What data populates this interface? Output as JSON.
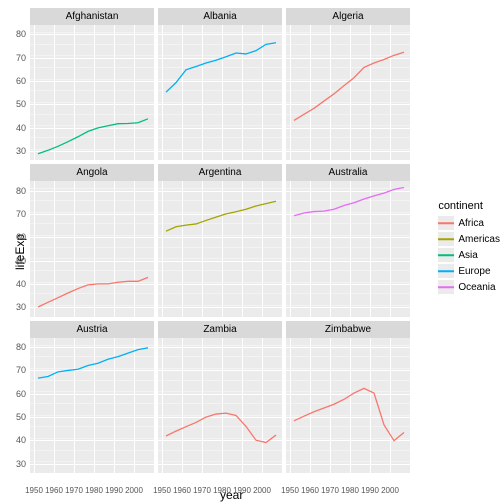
{
  "axis_titles": {
    "x": "year",
    "y": "lifeExp"
  },
  "legend": {
    "title": "continent",
    "items": [
      {
        "label": "Africa",
        "color": "#f8766d"
      },
      {
        "label": "Americas",
        "color": "#a3a500"
      },
      {
        "label": "Asia",
        "color": "#00bf7d"
      },
      {
        "label": "Europe",
        "color": "#00b0f6"
      },
      {
        "label": "Oceania",
        "color": "#e76bf3"
      }
    ]
  },
  "scales": {
    "x": {
      "domain": [
        1948,
        2010
      ],
      "ticks": [
        1950,
        1960,
        1970,
        1980,
        1990,
        2000
      ],
      "minor_step": 5
    },
    "y": {
      "domain": [
        26,
        84
      ],
      "ticks": [
        30,
        40,
        50,
        60,
        70,
        80
      ],
      "minor_step": 5
    }
  },
  "style": {
    "panel_bg": "#ebebeb",
    "strip_bg": "#d9d9d9",
    "grid_color": "#ffffff",
    "line_width": 1.3,
    "tick_fontsize": 9,
    "strip_fontsize": 10
  },
  "panels": [
    {
      "title": "Afghanistan",
      "color": "#00bf7d",
      "x": [
        1952,
        1957,
        1962,
        1967,
        1972,
        1977,
        1982,
        1987,
        1992,
        1997,
        2002,
        2007
      ],
      "y": [
        28.8,
        30.3,
        32.0,
        34.0,
        36.1,
        38.4,
        39.9,
        40.8,
        41.7,
        41.8,
        42.1,
        43.8
      ]
    },
    {
      "title": "Albania",
      "color": "#00b0f6",
      "x": [
        1952,
        1957,
        1962,
        1967,
        1972,
        1977,
        1982,
        1987,
        1992,
        1997,
        2002,
        2007
      ],
      "y": [
        55.2,
        59.3,
        64.8,
        66.2,
        67.7,
        68.9,
        70.4,
        72.0,
        71.6,
        73.0,
        75.7,
        76.4
      ]
    },
    {
      "title": "Algeria",
      "color": "#f8766d",
      "x": [
        1952,
        1957,
        1962,
        1967,
        1972,
        1977,
        1982,
        1987,
        1992,
        1997,
        2002,
        2007
      ],
      "y": [
        43.1,
        45.7,
        48.3,
        51.4,
        54.5,
        58.0,
        61.4,
        65.8,
        67.7,
        69.2,
        71.0,
        72.3
      ]
    },
    {
      "title": "Angola",
      "color": "#f8766d",
      "x": [
        1952,
        1957,
        1962,
        1967,
        1972,
        1977,
        1982,
        1987,
        1992,
        1997,
        2002,
        2007
      ],
      "y": [
        30.0,
        32.0,
        34.0,
        36.0,
        37.9,
        39.5,
        39.9,
        39.9,
        40.6,
        41.0,
        41.0,
        42.7
      ]
    },
    {
      "title": "Argentina",
      "color": "#a3a500",
      "x": [
        1952,
        1957,
        1962,
        1967,
        1972,
        1977,
        1982,
        1987,
        1992,
        1997,
        2002,
        2007
      ],
      "y": [
        62.5,
        64.4,
        65.1,
        65.6,
        67.1,
        68.5,
        69.9,
        70.8,
        71.9,
        73.3,
        74.3,
        75.3
      ]
    },
    {
      "title": "Australia",
      "color": "#e76bf3",
      "x": [
        1952,
        1957,
        1962,
        1967,
        1972,
        1977,
        1982,
        1987,
        1992,
        1997,
        2002,
        2007
      ],
      "y": [
        69.1,
        70.3,
        70.9,
        71.1,
        71.9,
        73.5,
        74.7,
        76.3,
        77.6,
        78.8,
        80.4,
        81.2
      ]
    },
    {
      "title": "Austria",
      "color": "#00b0f6",
      "x": [
        1952,
        1957,
        1962,
        1967,
        1972,
        1977,
        1982,
        1987,
        1992,
        1997,
        2002,
        2007
      ],
      "y": [
        66.8,
        67.5,
        69.5,
        70.1,
        70.6,
        72.2,
        73.2,
        74.9,
        76.0,
        77.5,
        79.0,
        79.8
      ]
    },
    {
      "title": "Zambia",
      "color": "#f8766d",
      "x": [
        1952,
        1957,
        1962,
        1967,
        1972,
        1977,
        1982,
        1987,
        1992,
        1997,
        2002,
        2007
      ],
      "y": [
        42.0,
        44.1,
        46.0,
        47.8,
        50.1,
        51.4,
        51.8,
        50.8,
        46.1,
        40.2,
        39.2,
        42.4
      ]
    },
    {
      "title": "Zimbabwe",
      "color": "#f8766d",
      "x": [
        1952,
        1957,
        1962,
        1967,
        1972,
        1977,
        1982,
        1987,
        1992,
        1997,
        2002,
        2007
      ],
      "y": [
        48.5,
        50.5,
        52.4,
        54.0,
        55.6,
        57.7,
        60.4,
        62.4,
        60.4,
        46.8,
        40.0,
        43.5
      ]
    }
  ]
}
